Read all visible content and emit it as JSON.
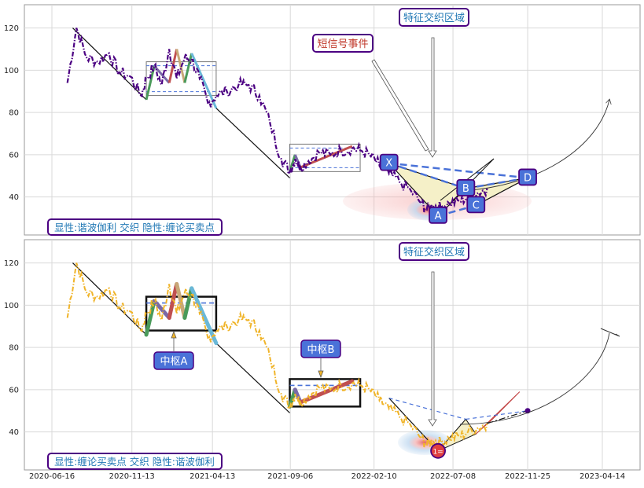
{
  "chart_data": [
    {
      "type": "line",
      "panel": "top",
      "title_box": "显性:谐波伽利 交织 隐性:缠论买卖点",
      "region_label": "特征交织区域",
      "event_label": "短信号事件",
      "ylim": [
        22,
        131
      ],
      "yticks": [
        40,
        60,
        80,
        100,
        120
      ],
      "price_color": "#4b0082",
      "series": [
        {
          "x": [
            "2020-07-15",
            "2020-08-01",
            "2020-08-20",
            "2020-09-10",
            "2020-10-01",
            "2020-10-20",
            "2020-11-10",
            "2020-11-30",
            "2020-12-10",
            "2020-12-25",
            "2021-01-08",
            "2021-01-22",
            "2021-02-05",
            "2021-02-20",
            "2021-03-05",
            "2021-03-20",
            "2021-04-05",
            "2021-04-20",
            "2021-05-10",
            "2021-06-01",
            "2021-06-20",
            "2021-07-10",
            "2021-07-30",
            "2021-08-20",
            "2021-09-05",
            "2021-09-15",
            "2021-09-25",
            "2021-10-10",
            "2021-10-30",
            "2021-11-20",
            "2021-12-10",
            "2021-12-31",
            "2022-01-15",
            "2022-02-01",
            "2022-02-20",
            "2022-03-10",
            "2022-03-30",
            "2022-04-20",
            "2022-05-10",
            "2022-05-20",
            "2022-06-01",
            "2022-06-15",
            "2022-07-01",
            "2022-07-20",
            "2022-08-05",
            "2022-08-25",
            "2022-09-10"
          ],
          "values": [
            94,
            120,
            106,
            104,
            108,
            99,
            97,
            88,
            96,
            102,
            93,
            110,
            96,
            106,
            105,
            96,
            84,
            88,
            90,
            93,
            93,
            88,
            75,
            58,
            52,
            58,
            54,
            57,
            61,
            60,
            62,
            63,
            62,
            60,
            55,
            51,
            47,
            43,
            37,
            34,
            36,
            35,
            37,
            38,
            40,
            42,
            44
          ]
        }
      ],
      "chan_strokes": [
        {
          "x": [
            "2020-07-25",
            "2020-12-10"
          ],
          "values": [
            120,
            86
          ]
        },
        {
          "x": [
            "2021-04-20",
            "2021-09-05"
          ],
          "values": [
            82,
            49
          ]
        }
      ],
      "zhongshu": {
        "x": [
          "2020-12-10",
          "2021-04-20"
        ],
        "values": [
          88,
          104
        ]
      },
      "zhongshu2": {
        "x": [
          "2021-09-05",
          "2022-01-15"
        ],
        "values": [
          52,
          65
        ]
      },
      "harmonic_points": [
        {
          "label": "X",
          "x": "2022-03-10",
          "value": 56
        },
        {
          "label": "A",
          "x": "2022-06-10",
          "value": 31
        },
        {
          "label": "B",
          "x": "2022-08-01",
          "value": 44
        },
        {
          "label": "C",
          "x": "2022-08-20",
          "value": 36
        },
        {
          "label": "D",
          "x": "2022-11-25",
          "value": 49
        }
      ]
    },
    {
      "type": "line",
      "panel": "bottom",
      "title_box": "显性:缠论买卖点 交织 隐性:谐波伽利",
      "region_label": "特征交织区域",
      "zhongshu_labels": [
        "中枢A",
        "中枢B"
      ],
      "signal_point_label": "1=",
      "ylim": [
        22,
        131
      ],
      "yticks": [
        40,
        60,
        80,
        100,
        120
      ],
      "xticks": [
        "2020-06-16",
        "2020-11-13",
        "2021-04-13",
        "2021-09-06",
        "2022-02-10",
        "2022-07-08",
        "2022-11-25",
        "2023-04-14"
      ],
      "price_color": "#f0b429",
      "series": [
        {
          "x": [
            "2020-07-15",
            "2020-08-01",
            "2020-08-20",
            "2020-09-10",
            "2020-10-01",
            "2020-10-20",
            "2020-11-10",
            "2020-11-30",
            "2020-12-10",
            "2020-12-25",
            "2021-01-08",
            "2021-01-22",
            "2021-02-05",
            "2021-02-20",
            "2021-03-05",
            "2021-03-20",
            "2021-04-05",
            "2021-04-20",
            "2021-05-10",
            "2021-06-01",
            "2021-06-20",
            "2021-07-10",
            "2021-07-30",
            "2021-08-20",
            "2021-09-05",
            "2021-09-15",
            "2021-09-25",
            "2021-10-10",
            "2021-10-30",
            "2021-11-20",
            "2021-12-10",
            "2021-12-31",
            "2022-01-15",
            "2022-02-01",
            "2022-02-20",
            "2022-03-10",
            "2022-03-30",
            "2022-04-20",
            "2022-05-10",
            "2022-05-20",
            "2022-06-01",
            "2022-06-15",
            "2022-07-01",
            "2022-07-20",
            "2022-08-05",
            "2022-08-25",
            "2022-09-10"
          ],
          "values": [
            94,
            120,
            106,
            104,
            108,
            99,
            97,
            88,
            96,
            102,
            93,
            110,
            96,
            106,
            105,
            96,
            84,
            88,
            90,
            93,
            93,
            88,
            75,
            58,
            52,
            58,
            54,
            57,
            61,
            60,
            62,
            63,
            62,
            60,
            55,
            51,
            47,
            43,
            37,
            34,
            36,
            35,
            37,
            38,
            40,
            42,
            44
          ]
        }
      ]
    }
  ]
}
